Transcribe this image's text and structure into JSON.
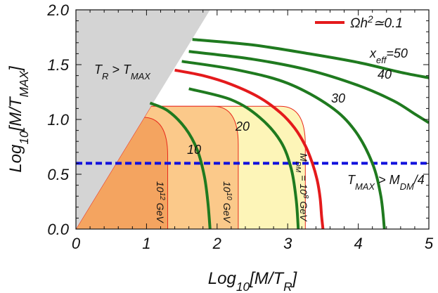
{
  "chart_data": {
    "type": "line",
    "title": "",
    "xlabel": "Log10[M/TR]",
    "ylabel": "Log10[M/TMAX]",
    "xlim": [
      0,
      5
    ],
    "ylim": [
      0,
      2.0
    ],
    "x_ticks": [
      0,
      1,
      2,
      3,
      4,
      5
    ],
    "y_ticks": [
      0.0,
      0.5,
      1.0,
      1.5,
      2.0
    ],
    "x_tick_labels": [
      "0",
      "1",
      "2",
      "3",
      "4",
      "5"
    ],
    "y_tick_labels": [
      "0.0",
      "0.5",
      "1.0",
      "1.5",
      "2.0"
    ],
    "grid": false,
    "legend": {
      "position": "top-right",
      "entries": [
        {
          "name": "Ωh²≃0.1",
          "color": "#e41a1c"
        }
      ]
    },
    "colors": {
      "relic": "#e41a1c",
      "xeff": "#1f7a1f",
      "tmax_line": "#1010dd",
      "excluded": "#d4d4d4",
      "mass_fill": [
        "#f4a460",
        "#fbc98a",
        "#fdf5b8"
      ],
      "mass_boundary": "#e8291c"
    },
    "excluded_region": {
      "label_main": "T",
      "label_sub1": "R",
      "label_mid": " > T",
      "label_sub2": "MAX",
      "boundary": [
        [
          0,
          0
        ],
        [
          1.9,
          2.0
        ]
      ]
    },
    "tmax_line": {
      "y": 0.6,
      "label_a": "T",
      "label_a_sub": "MAX",
      "label_b": " > M",
      "label_b_sub": "DM",
      "label_c": "/4"
    },
    "mass_regions": [
      {
        "label_pre": "10",
        "label_exp": "12",
        "label_unit": " GeV",
        "x_end": 1.3,
        "top": [
          [
            0,
            0
          ],
          [
            0.95,
            1.0
          ]
        ]
      },
      {
        "label_pre": "10",
        "label_exp": "10",
        "label_unit": " GeV",
        "x_end": 2.3,
        "top": [
          [
            0.95,
            1.0
          ],
          [
            1.35,
            1.1
          ]
        ]
      },
      {
        "label_pre": "M",
        "label_sub": "DM",
        "label_mid": " = 10",
        "label_exp": "8",
        "label_unit": " GeV",
        "x_end": 3.25,
        "top": [
          [
            1.35,
            1.1
          ],
          [
            2.0,
            1.1
          ]
        ]
      }
    ],
    "series": [
      {
        "name": "Ωh²≃0.1",
        "kind": "relic",
        "x": [
          1.4,
          1.8,
          2.2,
          2.6,
          2.9,
          3.1,
          3.25,
          3.35,
          3.42,
          3.46,
          3.48,
          3.5
        ],
        "y": [
          1.45,
          1.4,
          1.32,
          1.2,
          1.06,
          0.92,
          0.76,
          0.6,
          0.44,
          0.28,
          0.12,
          0.0
        ]
      },
      {
        "name": "xeff=10",
        "label": "10",
        "kind": "xeff",
        "x": [
          1.05,
          1.3,
          1.55,
          1.72,
          1.82,
          1.87,
          1.9
        ],
        "y": [
          1.15,
          1.08,
          0.92,
          0.72,
          0.48,
          0.24,
          0.0
        ]
      },
      {
        "name": "xeff=20",
        "label": "20",
        "kind": "xeff",
        "x": [
          1.6,
          2.2,
          2.6,
          2.9,
          3.05,
          3.12,
          3.15
        ],
        "y": [
          1.28,
          1.18,
          1.02,
          0.8,
          0.55,
          0.27,
          0.0
        ]
      },
      {
        "name": "xeff=30",
        "label": "30",
        "kind": "xeff",
        "x": [
          1.5,
          2.3,
          3.0,
          3.6,
          3.95,
          4.2,
          4.32,
          4.37
        ],
        "y": [
          1.53,
          1.45,
          1.33,
          1.12,
          0.9,
          0.6,
          0.3,
          0.0
        ]
      },
      {
        "name": "xeff=40",
        "label": "40",
        "kind": "xeff",
        "x": [
          1.6,
          2.5,
          3.3,
          4.0,
          4.5,
          4.8,
          5.0
        ],
        "y": [
          1.62,
          1.55,
          1.45,
          1.31,
          1.17,
          1.05,
          0.97
        ]
      },
      {
        "name": "xeff=50",
        "label": "x",
        "label_sub": "eff",
        "label_eq": "=50",
        "kind": "xeff",
        "x": [
          1.65,
          2.5,
          3.3,
          4.0,
          4.6,
          5.0
        ],
        "y": [
          1.73,
          1.68,
          1.6,
          1.52,
          1.43,
          1.38
        ]
      }
    ],
    "labels": {
      "x10": "10",
      "x20": "20",
      "x30": "30",
      "x40": "40"
    }
  }
}
